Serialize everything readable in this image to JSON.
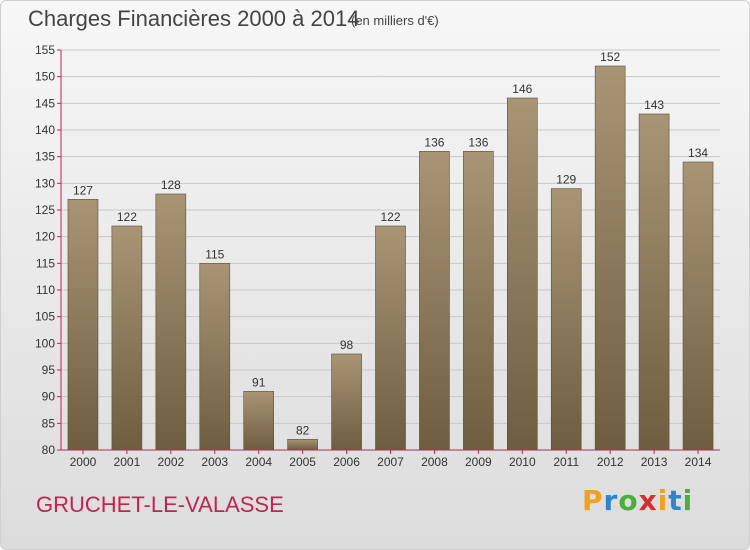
{
  "header": {
    "title": "Charges Financières 2000 à 2014",
    "subtitle": "(en milliers d'€)"
  },
  "footer": {
    "place_name": "GRUCHET-LE-VALASSE",
    "logo": {
      "text": "Proxiti",
      "colors": [
        "#f4a01c",
        "#2e86c8",
        "#4cae3c",
        "#d62e2e",
        "#f4a01c",
        "#2e86c8",
        "#4cae3c"
      ]
    }
  },
  "chart_data": {
    "type": "bar",
    "title": "Charges Financières 2000 à 2014",
    "subtitle": "(en milliers d'€)",
    "categories": [
      "2000",
      "2001",
      "2002",
      "2003",
      "2004",
      "2005",
      "2006",
      "2007",
      "2008",
      "2009",
      "2010",
      "2011",
      "2012",
      "2013",
      "2014"
    ],
    "values": [
      127,
      122,
      128,
      115,
      91,
      82,
      98,
      122,
      136,
      136,
      146,
      129,
      152,
      143,
      134
    ],
    "ylim": [
      80,
      155
    ],
    "yticks": [
      80,
      85,
      90,
      95,
      100,
      105,
      110,
      115,
      120,
      125,
      130,
      135,
      140,
      145,
      150,
      155
    ],
    "grid": true,
    "bar_color_top": "#a89576",
    "bar_color_bottom": "#6f5d40",
    "axis_color": "#c0254f"
  }
}
